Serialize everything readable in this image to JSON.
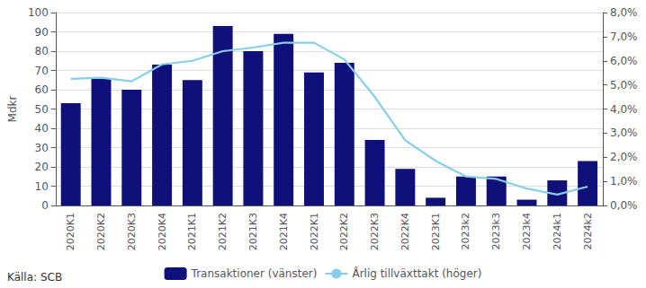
{
  "chart_data": {
    "type": "bar",
    "categories": [
      "2020K1",
      "2020K2",
      "2020K3",
      "2020K4",
      "2021K1",
      "2021K2",
      "2021K3",
      "2021K4",
      "2022K1",
      "2022K2",
      "2022K3",
      "2022K4",
      "2023K1",
      "2023k2",
      "2023k3",
      "2023k4",
      "2024k1",
      "2024k2"
    ],
    "series": [
      {
        "name": "Transaktioner (vänster)",
        "type": "bar",
        "color": "#10107a",
        "values": [
          53,
          66,
          60,
          73,
          65,
          93,
          80,
          89,
          69,
          74,
          34,
          19,
          4,
          15,
          15,
          3,
          13,
          23
        ]
      },
      {
        "name": "Årlig tillväxttakt (höger)",
        "type": "line",
        "color": "#87CEEB",
        "axis": "y2",
        "values": [
          5.25,
          5.3,
          5.15,
          5.85,
          6.0,
          6.4,
          6.55,
          6.75,
          6.75,
          6.05,
          4.5,
          2.7,
          1.85,
          1.2,
          1.1,
          0.7,
          0.45,
          0.78
        ]
      }
    ],
    "ylabel": "Mdkr",
    "ylim": [
      0,
      100
    ],
    "yticks": [
      0,
      10,
      20,
      30,
      40,
      50,
      60,
      70,
      80,
      90,
      100
    ],
    "y2lim": [
      0,
      8.0
    ],
    "y2ticks": [
      {
        "value": 0.0,
        "label": "0,0%"
      },
      {
        "value": 1.0,
        "label": "1,0%"
      },
      {
        "value": 2.0,
        "label": "2,0%"
      },
      {
        "value": 3.0,
        "label": "3,0%"
      },
      {
        "value": 4.0,
        "label": "4,0%"
      },
      {
        "value": 5.0,
        "label": "5,0%"
      },
      {
        "value": 6.0,
        "label": "6,0%"
      },
      {
        "value": 7.0,
        "label": "7,0%"
      },
      {
        "value": 8.0,
        "label": "8,0%"
      }
    ],
    "grid": true,
    "legend": "bottom",
    "annotations": [
      "Källa: SCB"
    ]
  }
}
